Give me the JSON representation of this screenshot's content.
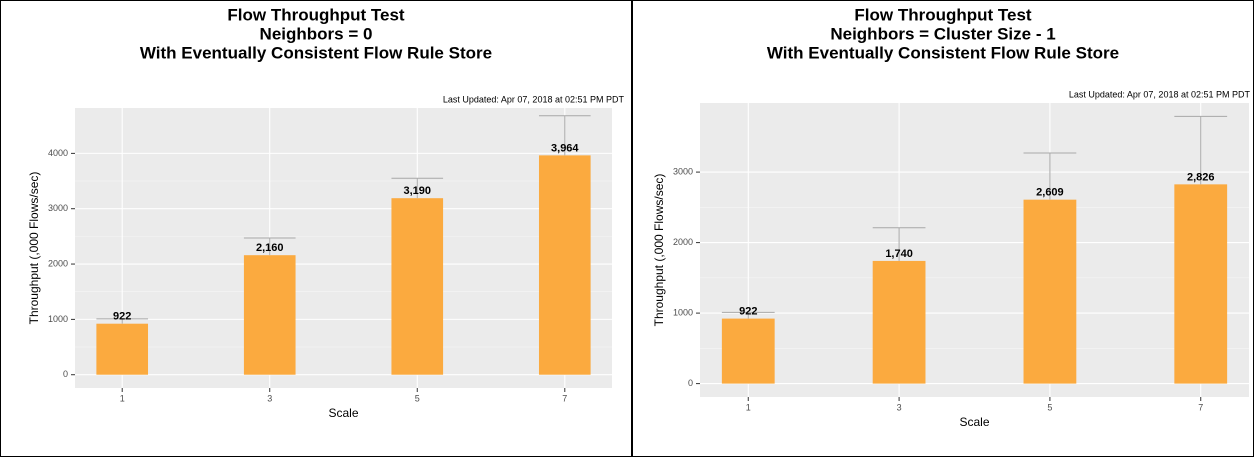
{
  "chart_data": [
    {
      "type": "bar",
      "title": [
        "Flow Throughput Test",
        "Neighbors = 0",
        "With Eventually Consistent Flow Rule Store"
      ],
      "annotation": "Last Updated: Apr 07, 2018 at 02:51 PM PDT",
      "x_label": "Scale",
      "y_label": "Throughput (,000 Flows/sec)",
      "categories": [
        "1",
        "3",
        "5",
        "7"
      ],
      "values": [
        922,
        2160,
        3190,
        3964
      ],
      "value_labels": [
        "922",
        "2,160",
        "3,190",
        "3,964"
      ],
      "errors": [
        88,
        310,
        360,
        716
      ],
      "color": "#fbaa3f",
      "error_color": "#a8a8a8",
      "ylim": [
        -240,
        4820
      ],
      "yticks": [
        0,
        1000,
        2000,
        3000,
        4000
      ],
      "grid": true
    },
    {
      "type": "bar",
      "title": [
        "Flow Throughput Test",
        "Neighbors = Cluster Size - 1",
        "With Eventually Consistent Flow Rule Store"
      ],
      "annotation": "Last Updated: Apr 07, 2018 at 02:51 PM PDT",
      "x_label": "Scale",
      "y_label": "Throughput (,000 Flows/sec)",
      "categories": [
        "1",
        "3",
        "5",
        "7"
      ],
      "values": [
        922,
        1740,
        2609,
        2826
      ],
      "value_labels": [
        "922",
        "1,740",
        "2,609",
        "2,826"
      ],
      "errors": [
        88,
        470,
        661,
        964
      ],
      "color": "#fbaa3f",
      "error_color": "#a8a8a8",
      "ylim": [
        -190,
        3980
      ],
      "yticks": [
        0,
        1000,
        2000,
        3000
      ],
      "grid": true
    }
  ]
}
